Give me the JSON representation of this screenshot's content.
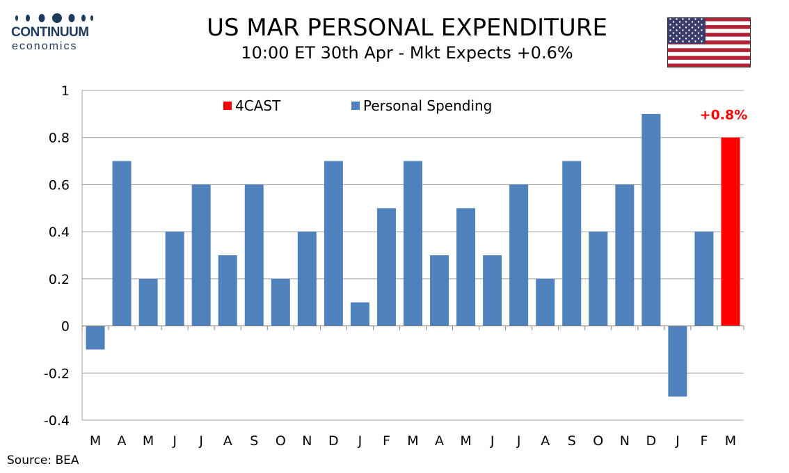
{
  "header": {
    "logo_name": "CONTINUUM",
    "logo_sub": "economics",
    "title": "US MAR PERSONAL EXPENDITURE",
    "subtitle": "10:00 ET 30th Apr - Mkt Expects +0.6%"
  },
  "footer": {
    "source": "Source: BEA"
  },
  "colors": {
    "spending": "#4f81bd",
    "forecast": "#ff0000",
    "brand": "#1f3a5f"
  },
  "icons": {
    "flag": "us-flag-icon",
    "logo": "continuum-logo-icon"
  },
  "chart_data": {
    "type": "bar",
    "title": "US MAR PERSONAL EXPENDITURE",
    "categories": [
      "M",
      "A",
      "M",
      "J",
      "J",
      "A",
      "S",
      "O",
      "N",
      "D",
      "J",
      "F",
      "M",
      "A",
      "M",
      "J",
      "J",
      "A",
      "S",
      "O",
      "N",
      "D",
      "J",
      "F",
      "M"
    ],
    "series": [
      {
        "name": "Personal Spending",
        "color": "#4f81bd",
        "values": [
          -0.1,
          0.7,
          0.2,
          0.4,
          0.6,
          0.3,
          0.6,
          0.2,
          0.4,
          0.7,
          0.1,
          0.5,
          0.7,
          0.3,
          0.5,
          0.3,
          0.6,
          0.2,
          0.7,
          0.4,
          0.6,
          0.9,
          -0.3,
          0.4,
          null
        ]
      },
      {
        "name": "4CAST",
        "color": "#ff0000",
        "values": [
          null,
          null,
          null,
          null,
          null,
          null,
          null,
          null,
          null,
          null,
          null,
          null,
          null,
          null,
          null,
          null,
          null,
          null,
          null,
          null,
          null,
          null,
          null,
          null,
          0.8
        ]
      }
    ],
    "annotations": [
      {
        "text": "+0.8%",
        "category_index": 24,
        "value": 0.8
      }
    ],
    "y_ticks": [
      "1",
      "0.8",
      "0.6",
      "0.4",
      "0.2",
      "0",
      "-0.2",
      "-0.4"
    ],
    "y_tick_values": [
      1,
      0.8,
      0.6,
      0.4,
      0.2,
      0,
      -0.2,
      -0.4
    ],
    "ylim": [
      -0.4,
      1
    ],
    "grid": true,
    "legend": {
      "position": "top",
      "items": [
        "4CAST",
        "Personal Spending"
      ]
    },
    "xlabel": "",
    "ylabel": ""
  }
}
